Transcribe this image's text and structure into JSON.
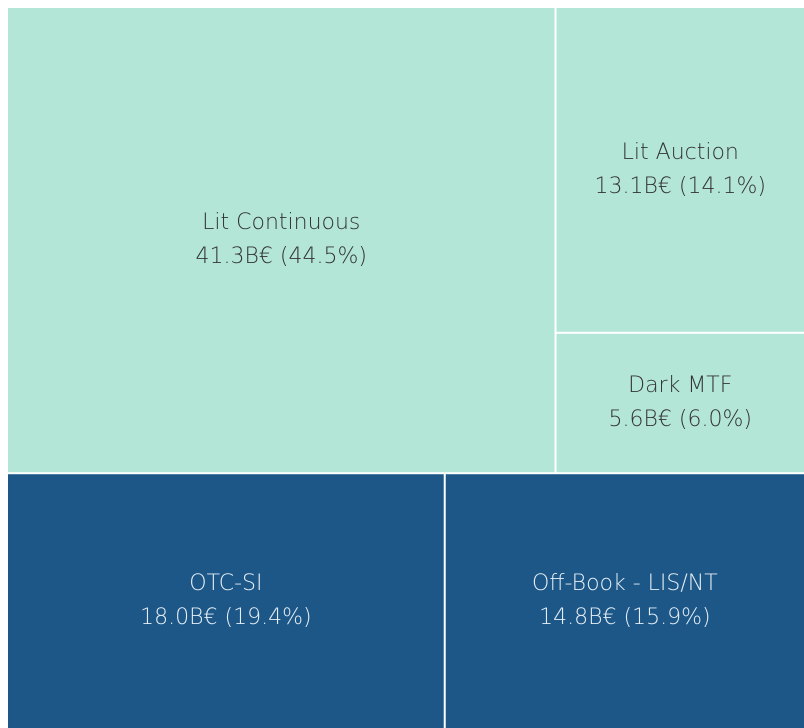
{
  "chart_data": {
    "type": "treemap",
    "categories": [
      "Lit Continuous",
      "Lit Auction",
      "Dark MTF",
      "OTC-SI",
      "Off-Book - LIS/NT"
    ],
    "values": [
      41.3,
      13.1,
      5.6,
      18.0,
      14.8
    ],
    "value_labels": [
      "41.3B€ (44.5%)",
      "13.1B€ (14.1%)",
      "5.6B€ (6.0%)",
      "18.0B€ (19.4%)",
      "14.8B€ (15.9%)"
    ],
    "colors": [
      "#b3e6d7",
      "#b3e6d7",
      "#b3e6d7",
      "#1c5788",
      "#1c5788"
    ]
  }
}
